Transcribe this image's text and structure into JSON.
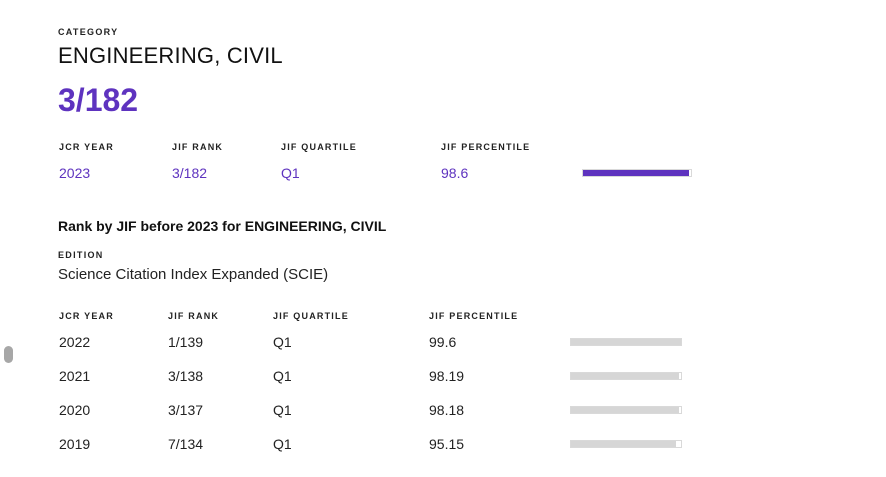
{
  "category": {
    "label": "CATEGORY",
    "name": "ENGINEERING, CIVIL",
    "rank": "3/182"
  },
  "current": {
    "headers": {
      "year": "JCR YEAR",
      "rank": "JIF RANK",
      "quartile": "JIF QUARTILE",
      "percentile": "JIF PERCENTILE"
    },
    "row": {
      "year": "2023",
      "rank": "3/182",
      "quartile": "Q1",
      "percentile": "98.6",
      "percentile_value": 98.6
    }
  },
  "history": {
    "title": "Rank by JIF before 2023 for ENGINEERING, CIVIL",
    "edition_label": "EDITION",
    "edition_value": "Science Citation Index Expanded (SCIE)",
    "headers": {
      "year": "JCR YEAR",
      "rank": "JIF RANK",
      "quartile": "JIF QUARTILE",
      "percentile": "JIF PERCENTILE"
    },
    "rows": [
      {
        "year": "2022",
        "rank": "1/139",
        "quartile": "Q1",
        "percentile": "99.6",
        "percentile_value": 99.6
      },
      {
        "year": "2021",
        "rank": "3/138",
        "quartile": "Q1",
        "percentile": "98.19",
        "percentile_value": 98.19
      },
      {
        "year": "2020",
        "rank": "3/137",
        "quartile": "Q1",
        "percentile": "98.18",
        "percentile_value": 98.18
      },
      {
        "year": "2019",
        "rank": "7/134",
        "quartile": "Q1",
        "percentile": "95.15",
        "percentile_value": 95.15
      }
    ]
  },
  "colors": {
    "accent": "#5e33bf",
    "bar_history": "#d6d6d6",
    "bar_border": "#d9d9d9"
  }
}
